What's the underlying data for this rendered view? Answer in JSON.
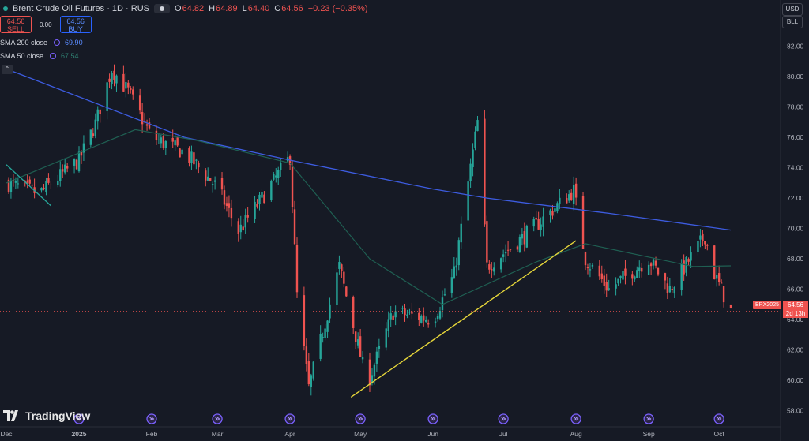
{
  "header": {
    "title": "Brent Crude Oil Futures · 1D · RUS",
    "ohlc": [
      {
        "k": "O",
        "v": "64.82"
      },
      {
        "k": "H",
        "v": "64.89"
      },
      {
        "k": "L",
        "v": "64.40"
      },
      {
        "k": "C",
        "v": "64.56"
      }
    ],
    "change": "−0.23 (−0.35%)"
  },
  "trade": {
    "sell_price": "64.56",
    "sell_label": "SELL",
    "spread": "0.00",
    "buy_price": "64.56",
    "buy_label": "BUY"
  },
  "indicators": [
    {
      "name": "SMA 200 close",
      "value": "69.90",
      "color": "#2962ff"
    },
    {
      "name": "SMA 50 close",
      "value": "67.54",
      "color": "#26a69a"
    }
  ],
  "right_panel": {
    "currency": "USD",
    "unit": "BLL"
  },
  "last_price": {
    "symbol": "BRX2025",
    "value": "64.56",
    "countdown": "2d 13h"
  },
  "logo_text": "TradingView",
  "colors": {
    "up": "#26a69a",
    "down": "#ef5350",
    "sma200": "#3d5ce0",
    "sma50": "#1f5f52",
    "trendline": "#e6d63a",
    "background": "#161a25"
  },
  "chart_data": {
    "type": "candlestick",
    "x_labels": [
      "Dec",
      "2025",
      "Feb",
      "Mar",
      "Apr",
      "May",
      "Jun",
      "Jul",
      "Aug",
      "Sep",
      "Oct"
    ],
    "y_ticks": [
      "58.00",
      "60.00",
      "62.00",
      "64.00",
      "66.00",
      "68.00",
      "70.00",
      "72.00",
      "74.00",
      "76.00",
      "78.00",
      "80.00",
      "82.00"
    ],
    "ylim": [
      57.0,
      84.0
    ],
    "close_path": [
      [
        "2024-12-01",
        73.0
      ],
      [
        "2024-12-15",
        72.3
      ],
      [
        "2025-01-01",
        74.5
      ],
      [
        "2025-01-08",
        76.9
      ],
      [
        "2025-01-15",
        80.5
      ],
      [
        "2025-01-22",
        79.0
      ],
      [
        "2025-02-01",
        76.0
      ],
      [
        "2025-02-15",
        75.0
      ],
      [
        "2025-03-01",
        72.7
      ],
      [
        "2025-03-10",
        69.8
      ],
      [
        "2025-03-20",
        72.0
      ],
      [
        "2025-04-01",
        74.7
      ],
      [
        "2025-04-04",
        65.6
      ],
      [
        "2025-04-09",
        59.5
      ],
      [
        "2025-04-22",
        67.5
      ],
      [
        "2025-05-02",
        61.0
      ],
      [
        "2025-05-05",
        60.2
      ],
      [
        "2025-05-15",
        64.5
      ],
      [
        "2025-06-01",
        64.0
      ],
      [
        "2025-06-10",
        67.0
      ],
      [
        "2025-06-20",
        77.0
      ],
      [
        "2025-06-24",
        67.5
      ],
      [
        "2025-07-10",
        69.5
      ],
      [
        "2025-07-31",
        72.5
      ],
      [
        "2025-08-05",
        68.0
      ],
      [
        "2025-08-15",
        66.0
      ],
      [
        "2025-09-01",
        68.0
      ],
      [
        "2025-09-10",
        66.0
      ],
      [
        "2025-09-25",
        69.5
      ],
      [
        "2025-09-29",
        67.0
      ],
      [
        "2025-10-06",
        64.56
      ]
    ],
    "sma200": [
      [
        "2024-12-01",
        80.5
      ],
      [
        "2025-02-15",
        76.0
      ],
      [
        "2025-04-01",
        74.5
      ],
      [
        "2025-06-01",
        72.6
      ],
      [
        "2025-06-24",
        72.0
      ],
      [
        "2025-08-15",
        71.0
      ],
      [
        "2025-10-06",
        69.9
      ]
    ],
    "sma50": [
      [
        "2024-12-01",
        73.0
      ],
      [
        "2025-01-25",
        76.5
      ],
      [
        "2025-02-20",
        75.8
      ],
      [
        "2025-04-01",
        74.3
      ],
      [
        "2025-05-05",
        68.0
      ],
      [
        "2025-06-05",
        65.0
      ],
      [
        "2025-07-15",
        67.8
      ],
      [
        "2025-08-05",
        69.0
      ],
      [
        "2025-09-20",
        67.5
      ],
      [
        "2025-10-06",
        67.54
      ]
    ],
    "trendlines": [
      {
        "from": [
          "2024-12-01",
          74.2
        ],
        "to": [
          "2024-12-20",
          71.5
        ],
        "color": "#26a69a"
      },
      {
        "from": [
          "2025-04-27",
          58.9
        ],
        "to": [
          "2025-08-01",
          69.2
        ],
        "color": "#e6d63a"
      }
    ],
    "last_price": 64.56,
    "grid": false
  }
}
